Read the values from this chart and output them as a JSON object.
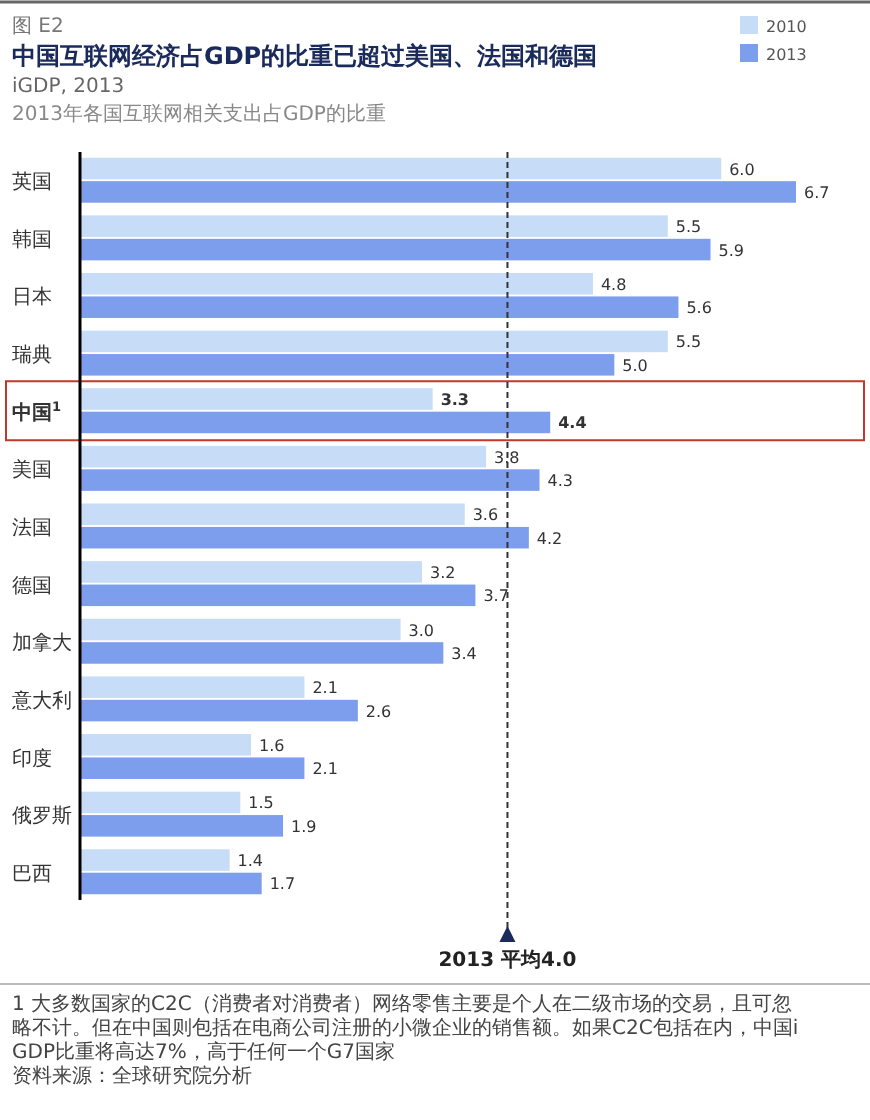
{
  "chart_data": {
    "type": "bar",
    "orientation": "horizontal",
    "title": "中国互联网经济占GDP的比重已超过美国、法国和德国",
    "subtitle": "iGDP, 2013",
    "categories": [
      "英国",
      "韩国",
      "日本",
      "瑞典",
      "中国$^{1}$",
      "美国",
      "法国",
      "德国",
      "加拿大",
      "意大利",
      "印度",
      "俄罗斯",
      "巴西"
    ],
    "series": [
      {
        "name": "2010",
        "color": "#c6dcf7",
        "values": [
          6.0,
          5.5,
          4.8,
          5.5,
          3.3,
          3.8,
          3.6,
          3.2,
          3.0,
          2.1,
          1.6,
          1.5,
          1.4
        ],
        "value_labels": [
          "6.0",
          "5.5",
          "4.8",
          "5.5",
          "3.3",
          "3.8",
          "3.6",
          "3.2",
          "3.0",
          "2.1",
          "1.6",
          "1.5",
          "1.4"
        ]
      },
      {
        "name": "2013",
        "color": "#7d9eec",
        "values": [
          6.7,
          5.9,
          5.6,
          5.0,
          4.4,
          4.3,
          4.2,
          3.7,
          3.4,
          2.6,
          2.1,
          1.9,
          1.7
        ],
        "value_labels": [
          "6.7",
          "5.9",
          "5.6",
          "5.0",
          "4.4",
          "4.3",
          "4.2",
          "3.7",
          "3.4",
          "2.6",
          "2.1",
          "1.9",
          "1.7"
        ]
      }
    ],
    "tick_labels": "y",
    "legend": "top right",
    "ref_lines": [
      {
        "axis": "x",
        "value": 4.0,
        "label": "2013 平均4.0",
        "line_style": "dashed",
        "color": "#333333"
      }
    ],
    "annotations": [
      "图 E2",
      "2013年各国互联网相关支出占GDP的比重",
      "1 大多数国家的C2C（消费者对消费者）网络零售主要是个人在二级市场的交易，且可忽略不计。但在中国则包括在电商公司注册的小微企业的销售额。如果C2C包括在内，中国iGDP比重将高达7%，高于任何一个G7国家",
      "资料来源：全球研究院分析"
    ]
  }
}
